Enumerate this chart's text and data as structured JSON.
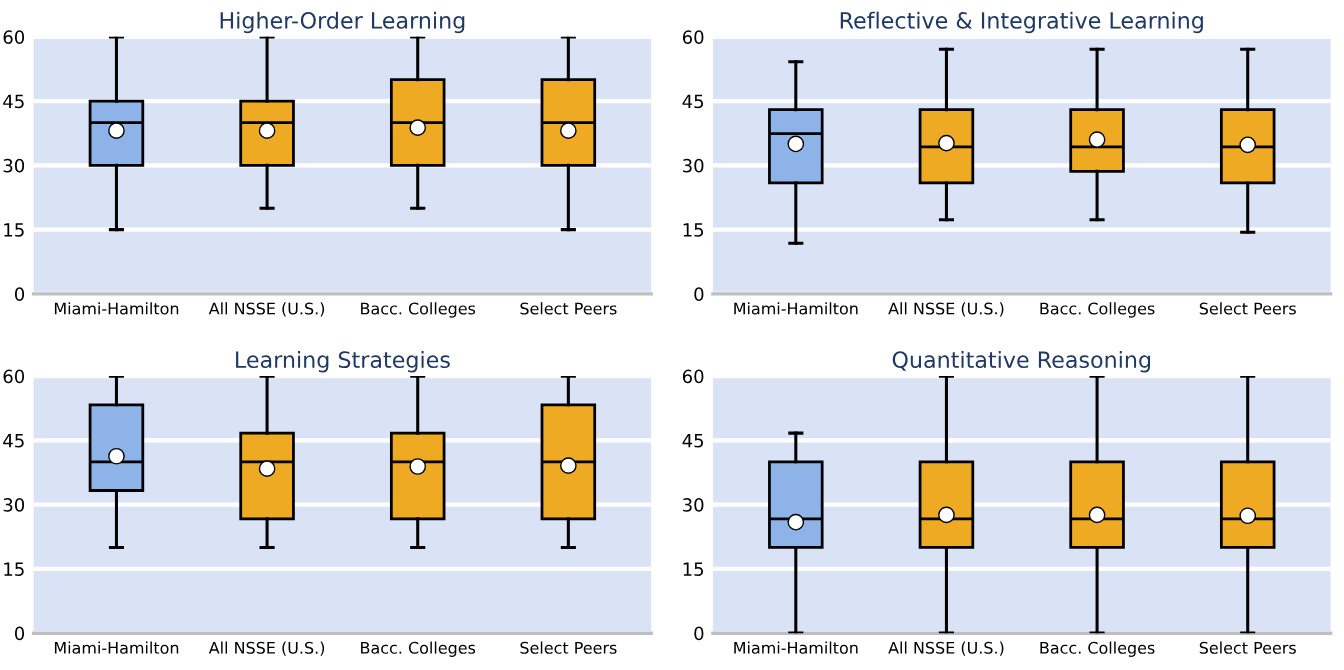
{
  "chart_data": [
    {
      "type": "box",
      "title": "Higher-Order Learning",
      "categories": [
        "Miami-Hamilton",
        "All NSSE (U.S.)",
        "Bacc. Colleges",
        "Select Peers"
      ],
      "colors": [
        "#8db3e8",
        "#eeaa22",
        "#eeaa22",
        "#eeaa22"
      ],
      "ylim": [
        0,
        60
      ],
      "yticks": [
        0,
        15,
        30,
        45,
        60
      ],
      "grid": "y",
      "boxes": [
        {
          "low": 15,
          "q1": 30,
          "median": 40,
          "q3": 45,
          "high": 60,
          "mean": 38.1
        },
        {
          "low": 20,
          "q1": 30,
          "median": 40,
          "q3": 45,
          "high": 60,
          "mean": 38.1
        },
        {
          "low": 20,
          "q1": 30,
          "median": 40,
          "q3": 50,
          "high": 60,
          "mean": 38.8
        },
        {
          "low": 15,
          "q1": 30,
          "median": 40,
          "q3": 50,
          "high": 60,
          "mean": 38.1
        }
      ]
    },
    {
      "type": "box",
      "title": "Reflective & Integrative Learning",
      "categories": [
        "Miami-Hamilton",
        "All NSSE (U.S.)",
        "Bacc. Colleges",
        "Select Peers"
      ],
      "colors": [
        "#8db3e8",
        "#eeaa22",
        "#eeaa22",
        "#eeaa22"
      ],
      "ylim": [
        0,
        60
      ],
      "yticks": [
        0,
        15,
        30,
        45,
        60
      ],
      "grid": "y",
      "boxes": [
        {
          "low": 11.8,
          "q1": 25.9,
          "median": 37.4,
          "q3": 43,
          "high": 54.2,
          "mean": 35.0
        },
        {
          "low": 17.3,
          "q1": 25.9,
          "median": 34.3,
          "q3": 43,
          "high": 57.1,
          "mean": 35.2
        },
        {
          "low": 17.3,
          "q1": 28.6,
          "median": 34.3,
          "q3": 43,
          "high": 57.1,
          "mean": 36.0
        },
        {
          "low": 14.4,
          "q1": 25.9,
          "median": 34.3,
          "q3": 43,
          "high": 57.1,
          "mean": 34.8
        }
      ]
    },
    {
      "type": "box",
      "title": "Learning Strategies",
      "categories": [
        "Miami-Hamilton",
        "All NSSE (U.S.)",
        "Bacc. Colleges",
        "Select Peers"
      ],
      "colors": [
        "#8db3e8",
        "#eeaa22",
        "#eeaa22",
        "#eeaa22"
      ],
      "ylim": [
        0,
        60
      ],
      "yticks": [
        0,
        15,
        30,
        45,
        60
      ],
      "grid": "y",
      "boxes": [
        {
          "low": 20,
          "q1": 33.3,
          "median": 40,
          "q3": 53.3,
          "high": 60,
          "mean": 41.3
        },
        {
          "low": 20,
          "q1": 26.7,
          "median": 40,
          "q3": 46.7,
          "high": 60,
          "mean": 38.4
        },
        {
          "low": 20,
          "q1": 26.7,
          "median": 40,
          "q3": 46.7,
          "high": 60,
          "mean": 38.9
        },
        {
          "low": 20,
          "q1": 26.7,
          "median": 40,
          "q3": 53.3,
          "high": 60,
          "mean": 39.1
        }
      ]
    },
    {
      "type": "box",
      "title": "Quantitative Reasoning",
      "categories": [
        "Miami-Hamilton",
        "All NSSE (U.S.)",
        "Bacc. Colleges",
        "Select Peers"
      ],
      "colors": [
        "#8db3e8",
        "#eeaa22",
        "#eeaa22",
        "#eeaa22"
      ],
      "ylim": [
        0,
        60
      ],
      "yticks": [
        0,
        15,
        30,
        45,
        60
      ],
      "grid": "y",
      "boxes": [
        {
          "low": 0,
          "q1": 20,
          "median": 26.7,
          "q3": 40,
          "high": 46.7,
          "mean": 25.9
        },
        {
          "low": 0,
          "q1": 20,
          "median": 26.7,
          "q3": 40,
          "high": 60,
          "mean": 27.6
        },
        {
          "low": 0,
          "q1": 20,
          "median": 26.7,
          "q3": 40,
          "high": 60,
          "mean": 27.6
        },
        {
          "low": 0,
          "q1": 20,
          "median": 26.7,
          "q3": 40,
          "high": 60,
          "mean": 27.4
        }
      ]
    }
  ]
}
